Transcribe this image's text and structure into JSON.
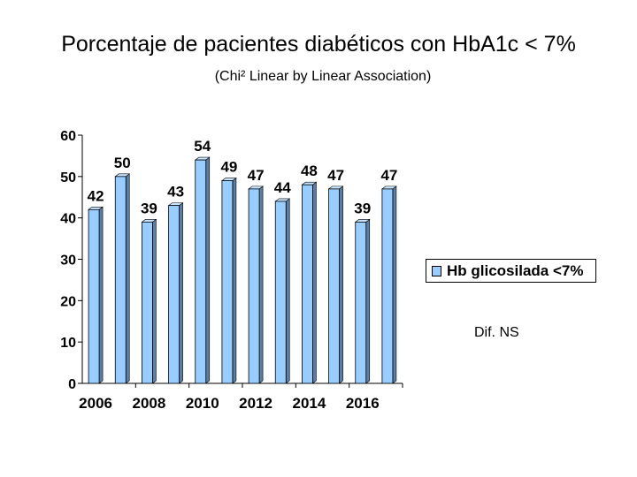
{
  "title": "Porcentaje de pacientes diabéticos con HbA1c < 7%",
  "subtitle": "(Chi² Linear by Linear Association)",
  "note": "Dif. NS",
  "colors": {
    "bar_front": "#99ccff",
    "bar_side": "#5a7fa6",
    "bar_top": "#c9e4ff",
    "axis": "#000000"
  },
  "chart_data": {
    "type": "bar",
    "title": "Porcentaje de pacientes diabéticos con HbA1c < 7%",
    "subtitle": "(Chi² Linear by Linear Association)",
    "series": [
      {
        "name": "Hb glicosilada <7%",
        "values": [
          42,
          50,
          39,
          43,
          54,
          49,
          47,
          44,
          48,
          47,
          39,
          47
        ]
      }
    ],
    "x_ticks": [
      "2006",
      "2008",
      "2010",
      "2012",
      "2014",
      "2016"
    ],
    "y_ticks": [
      0,
      10,
      20,
      30,
      40,
      50,
      60
    ],
    "ylim": [
      0,
      60
    ],
    "xlabel": "",
    "ylabel": "",
    "legend": "right",
    "annotation": "Dif. NS"
  }
}
